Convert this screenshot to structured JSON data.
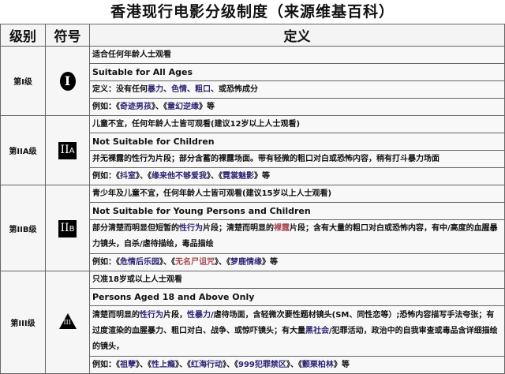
{
  "title": "香港现行电影分级制度（来源维基百科）",
  "headers": {
    "level": "级别",
    "symbol": "符号",
    "definition": "定义"
  },
  "colors": {
    "blue": "#2b2474",
    "red": "#a8484f"
  },
  "rows": [
    {
      "level": "第I级",
      "symbol": "I",
      "symbol_icon": "circle-badge",
      "cn": "适合任何年龄人士观看",
      "en": "Suitable for All Ages",
      "desc": [
        {
          "t": "定义：没有任何"
        },
        {
          "t": "暴力",
          "c": "blue"
        },
        {
          "t": "、"
        },
        {
          "t": "色情",
          "c": "blue"
        },
        {
          "t": "、"
        },
        {
          "t": "粗口",
          "c": "blue"
        },
        {
          "t": "、或恐怖成分"
        }
      ],
      "examples": [
        {
          "t": "例如：《"
        },
        {
          "t": "奇迹男孩",
          "c": "blue"
        },
        {
          "t": "》、《"
        },
        {
          "t": "童幻逆缘",
          "c": "blue"
        },
        {
          "t": "》等"
        }
      ]
    },
    {
      "level": "第IIA级",
      "symbol": "II",
      "symbol_sub": "A",
      "symbol_icon": "square-badge",
      "cn": "儿童不宜，任何年龄人士皆可观看(建议12岁以上人士观看)",
      "en": "Not Suitable for Children",
      "desc": [
        {
          "t": "并无裸露的性行为片段；部分含蓄的裸露场面。带有轻微的粗口对白或恐怖内容，稍有打斗暴力场面"
        }
      ],
      "examples": [
        {
          "t": "例如：《"
        },
        {
          "t": "抖室",
          "c": "blue"
        },
        {
          "t": "》、《"
        },
        {
          "t": "缘来他不够爱我",
          "c": "blue"
        },
        {
          "t": "》、《"
        },
        {
          "t": "霓裳魅影",
          "c": "blue"
        },
        {
          "t": "》等"
        }
      ]
    },
    {
      "level": "第IIB级",
      "symbol": "II",
      "symbol_sub": "B",
      "symbol_icon": "square-badge",
      "cn": "青少年及儿童不宜，任何年龄人士皆可观看(建议15岁以上人士观看)",
      "en": "Not Suitable for Young Persons and Children",
      "desc": [
        {
          "t": "部分清楚而明显但短暂的"
        },
        {
          "t": "性行为",
          "c": "blue"
        },
        {
          "t": "片段；清楚而明显的"
        },
        {
          "t": "裸露",
          "c": "red"
        },
        {
          "t": "片段；含有大量的粗口对白或恐怖内容，有中/高度的血腥暴力镜头，自杀/虐待描绘，毒品描绘"
        }
      ],
      "examples": [
        {
          "t": "例如：《"
        },
        {
          "t": "危情后乐园",
          "c": "blue"
        },
        {
          "t": "》、《"
        },
        {
          "t": "无名尸诅咒",
          "c": "red"
        },
        {
          "t": "》、《"
        },
        {
          "t": "梦鹿情缘",
          "c": "blue"
        },
        {
          "t": "》等"
        }
      ]
    },
    {
      "level": "第III级",
      "symbol": "III",
      "symbol_icon": "triangle-badge",
      "cn": "只准18岁或以上人士观看",
      "en": "Persons Aged 18 and Above Only",
      "desc": [
        {
          "t": "清楚而明显的"
        },
        {
          "t": "性行为",
          "c": "blue"
        },
        {
          "t": "片段，"
        },
        {
          "t": "性暴力",
          "c": "blue"
        },
        {
          "t": "/虐待场面，含轻微次要性题材镜头(SM、同性恋等）;恐怖内容描写手法夸张；有过度渲染的血腥暴力、粗口对白、战争、或惊吓镜头；有大量"
        },
        {
          "t": "黑社会",
          "c": "blue"
        },
        {
          "t": "/犯罪活动，政治中的自我审查或毒品含详细描绘的镜头，"
        }
      ],
      "examples": [
        {
          "t": "例如：《"
        },
        {
          "t": "祖孽",
          "c": "blue"
        },
        {
          "t": "》、《"
        },
        {
          "t": "性上瘾",
          "c": "blue"
        },
        {
          "t": "》、《"
        },
        {
          "t": "红海行动",
          "c": "blue"
        },
        {
          "t": "》、《"
        },
        {
          "t": "999犯罪禁区",
          "c": "blue"
        },
        {
          "t": "》、《"
        },
        {
          "t": "颤栗柏林",
          "c": "blue"
        },
        {
          "t": "》等"
        }
      ]
    }
  ]
}
